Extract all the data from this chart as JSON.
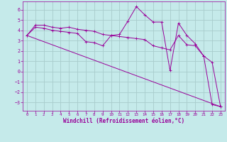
{
  "xlabel": "Windchill (Refroidissement éolien,°C)",
  "background_color": "#c5eaea",
  "grid_color": "#a8cccc",
  "line_color": "#990099",
  "xlim": [
    -0.5,
    23.5
  ],
  "ylim": [
    -3.8,
    6.8
  ],
  "xticks": [
    0,
    1,
    2,
    3,
    4,
    5,
    6,
    7,
    8,
    9,
    10,
    11,
    12,
    13,
    14,
    15,
    16,
    17,
    18,
    19,
    20,
    21,
    22,
    23
  ],
  "yticks": [
    -3,
    -2,
    -1,
    0,
    1,
    2,
    3,
    4,
    5,
    6
  ],
  "line1_x": [
    0,
    1,
    2,
    3,
    4,
    5,
    6,
    7,
    8,
    9,
    10,
    11,
    12,
    13,
    14,
    15,
    16,
    17,
    18,
    19,
    20,
    21,
    22,
    23
  ],
  "line1_y": [
    3.5,
    4.5,
    4.5,
    4.3,
    4.2,
    4.3,
    4.1,
    4.0,
    3.9,
    3.6,
    3.5,
    3.6,
    4.9,
    6.3,
    5.5,
    4.8,
    4.8,
    0.1,
    4.7,
    3.5,
    2.7,
    1.5,
    0.9,
    -3.4
  ],
  "line2_x": [
    0,
    1,
    2,
    3,
    4,
    5,
    6,
    7,
    8,
    9,
    10,
    11,
    12,
    13,
    14,
    15,
    16,
    17,
    18,
    19,
    20,
    21,
    22,
    23
  ],
  "line2_y": [
    3.5,
    4.3,
    4.2,
    4.0,
    3.9,
    3.8,
    3.7,
    2.9,
    2.8,
    2.5,
    3.5,
    3.4,
    3.3,
    3.2,
    3.1,
    2.5,
    2.3,
    2.1,
    3.5,
    2.6,
    2.5,
    1.5,
    -3.2,
    -3.4
  ],
  "line3_x": [
    0,
    23
  ],
  "line3_y": [
    3.5,
    -3.4
  ]
}
